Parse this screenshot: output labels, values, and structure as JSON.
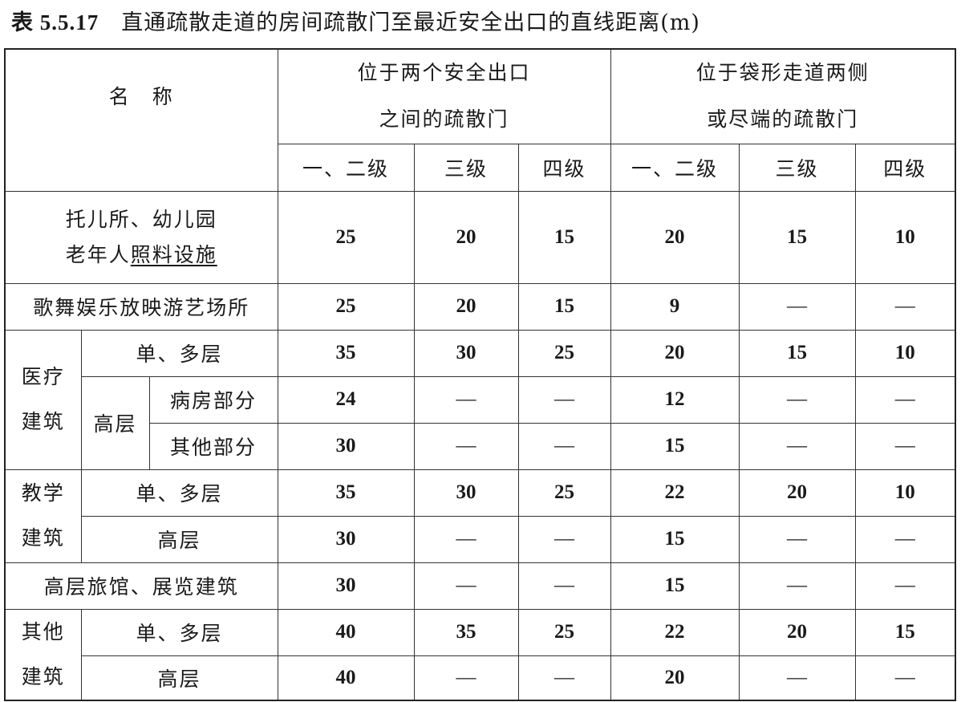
{
  "title": {
    "number": "表 5.5.17",
    "text": "直通疏散走道的房间疏散门至最近安全出口的直线距离(m)"
  },
  "header": {
    "name": "名　称",
    "group1_line1": "位于两个安全出口",
    "group1_line2": "之间的疏散门",
    "group2_line1": "位于袋形走道两侧",
    "group2_line2": "或尽端的疏散门",
    "grades": [
      "一、二级",
      "三级",
      "四级",
      "一、二级",
      "三级",
      "四级"
    ]
  },
  "rows": [
    {
      "label1": "托儿所、幼儿园",
      "label2_plain": "老年人",
      "label2_underlined": "照料设施",
      "values": [
        "25",
        "20",
        "15",
        "20",
        "15",
        "10"
      ]
    },
    {
      "label": "歌舞娱乐放映游艺场所",
      "values": [
        "25",
        "20",
        "15",
        "9",
        "—",
        "—"
      ]
    },
    {
      "group": "医疗建筑",
      "group_l1": "医疗",
      "group_l2": "建筑",
      "sub": "单、多层",
      "values": [
        "35",
        "30",
        "25",
        "20",
        "15",
        "10"
      ]
    },
    {
      "sub": "高层",
      "subsub": "病房部分",
      "values": [
        "24",
        "—",
        "—",
        "12",
        "—",
        "—"
      ]
    },
    {
      "subsub": "其他部分",
      "values": [
        "30",
        "—",
        "—",
        "15",
        "—",
        "—"
      ]
    },
    {
      "group_l1": "教学",
      "group_l2": "建筑",
      "sub": "单、多层",
      "values": [
        "35",
        "30",
        "25",
        "22",
        "20",
        "10"
      ]
    },
    {
      "sub": "高层",
      "values": [
        "30",
        "—",
        "—",
        "15",
        "—",
        "—"
      ]
    },
    {
      "label": "高层旅馆、展览建筑",
      "values": [
        "30",
        "—",
        "—",
        "15",
        "—",
        "—"
      ]
    },
    {
      "group_l1": "其他",
      "group_l2": "建筑",
      "sub": "单、多层",
      "values": [
        "40",
        "35",
        "25",
        "22",
        "20",
        "15"
      ]
    },
    {
      "sub": "高层",
      "values": [
        "40",
        "—",
        "—",
        "20",
        "—",
        "—"
      ]
    }
  ]
}
